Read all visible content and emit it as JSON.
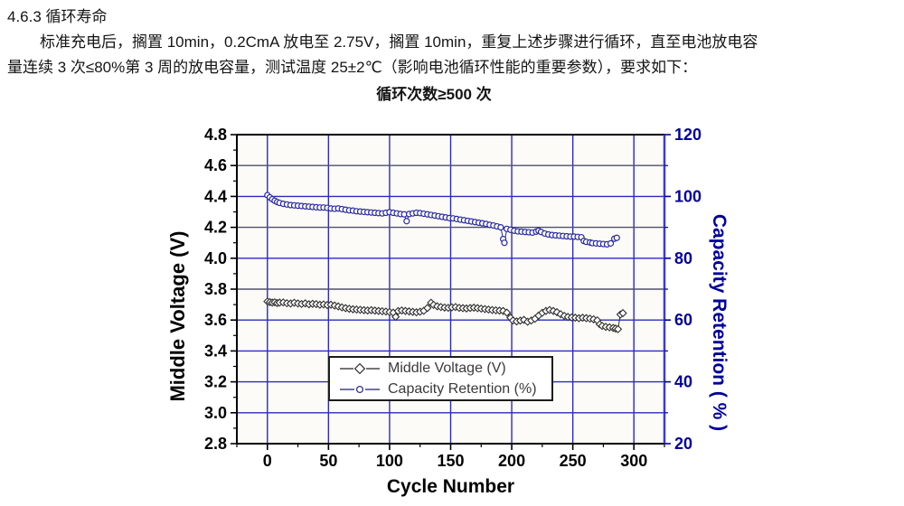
{
  "document": {
    "heading": "4.6.3 循环寿命",
    "body_line_1": "标准充电后，搁置 10min，0.2CmA 放电至 2.75V，搁置 10min，重复上述步骤进行循环，直至电池放电容",
    "body_line_2": "量连续 3 次≤80%第 3 周的放电容量，测试温度 25±2℃（影响电池循环性能的重要参数），要求如下：",
    "requirement": "循环次数≥500 次"
  },
  "chart_data": {
    "type": "line",
    "title": "",
    "xlabel": "Cycle Number",
    "ylabel_left": "Middle Voltage (V)",
    "ylabel_right": "Capacity Retention ( % )",
    "xlim": [
      -25,
      325
    ],
    "x_ticks": [
      0,
      50,
      100,
      150,
      200,
      250,
      300
    ],
    "x_minor_step": 25,
    "ylim_left": [
      2.8,
      4.8
    ],
    "y_ticks_left": [
      2.8,
      3.0,
      3.2,
      3.4,
      3.6,
      3.8,
      4.0,
      4.2,
      4.4,
      4.6,
      4.8
    ],
    "y_minor_step_left": 0.1,
    "ylim_right": [
      20,
      120
    ],
    "y_ticks_right": [
      20,
      40,
      60,
      80,
      100,
      120
    ],
    "y_minor_step_right": 10,
    "grid": true,
    "grid_color_blue": "#2b2bc0",
    "grid_color_dark": "#50506a",
    "grid_dark_values": [
      4.6,
      4.2,
      3.8
    ],
    "plot_bg": "#fcfbf7",
    "spine_color": "#000000",
    "right_spine_color": "#3c3ccc",
    "right_axis_color": "#00009b",
    "legend_position": "inside-bottom-center",
    "series": [
      {
        "name": "Middle Voltage (V)",
        "axis": "left",
        "marker": "diamond",
        "color": "#2e2e2e",
        "points": [
          [
            0,
            3.72
          ],
          [
            2,
            3.716
          ],
          [
            4,
            3.713
          ],
          [
            6,
            3.715
          ],
          [
            8,
            3.71
          ],
          [
            10,
            3.713
          ],
          [
            13,
            3.714
          ],
          [
            16,
            3.709
          ],
          [
            19,
            3.707
          ],
          [
            22,
            3.712
          ],
          [
            25,
            3.707
          ],
          [
            28,
            3.704
          ],
          [
            31,
            3.708
          ],
          [
            34,
            3.702
          ],
          [
            37,
            3.705
          ],
          [
            40,
            3.703
          ],
          [
            43,
            3.699
          ],
          [
            46,
            3.701
          ],
          [
            49,
            3.697
          ],
          [
            52,
            3.699
          ],
          [
            55,
            3.694
          ],
          [
            58,
            3.688
          ],
          [
            61,
            3.682
          ],
          [
            64,
            3.677
          ],
          [
            67,
            3.673
          ],
          [
            70,
            3.67
          ],
          [
            73,
            3.668
          ],
          [
            76,
            3.666
          ],
          [
            79,
            3.664
          ],
          [
            82,
            3.662
          ],
          [
            85,
            3.664
          ],
          [
            88,
            3.661
          ],
          [
            91,
            3.659
          ],
          [
            94,
            3.657
          ],
          [
            97,
            3.655
          ],
          [
            100,
            3.652
          ],
          [
            103,
            3.648
          ],
          [
            105,
            3.621
          ],
          [
            107,
            3.658
          ],
          [
            110,
            3.662
          ],
          [
            113,
            3.659
          ],
          [
            116,
            3.656
          ],
          [
            119,
            3.653
          ],
          [
            122,
            3.65
          ],
          [
            125,
            3.654
          ],
          [
            128,
            3.66
          ],
          [
            131,
            3.678
          ],
          [
            134,
            3.712
          ],
          [
            136,
            3.698
          ],
          [
            139,
            3.689
          ],
          [
            142,
            3.684
          ],
          [
            145,
            3.681
          ],
          [
            148,
            3.679
          ],
          [
            151,
            3.682
          ],
          [
            154,
            3.684
          ],
          [
            157,
            3.679
          ],
          [
            160,
            3.677
          ],
          [
            163,
            3.675
          ],
          [
            166,
            3.678
          ],
          [
            169,
            3.68
          ],
          [
            172,
            3.677
          ],
          [
            175,
            3.674
          ],
          [
            178,
            3.671
          ],
          [
            181,
            3.668
          ],
          [
            184,
            3.665
          ],
          [
            187,
            3.663
          ],
          [
            190,
            3.661
          ],
          [
            193,
            3.659
          ],
          [
            196,
            3.648
          ],
          [
            199,
            3.615
          ],
          [
            201,
            3.597
          ],
          [
            204,
            3.591
          ],
          [
            207,
            3.596
          ],
          [
            210,
            3.601
          ],
          [
            213,
            3.589
          ],
          [
            216,
            3.597
          ],
          [
            219,
            3.608
          ],
          [
            222,
            3.629
          ],
          [
            225,
            3.647
          ],
          [
            228,
            3.659
          ],
          [
            231,
            3.665
          ],
          [
            234,
            3.659
          ],
          [
            237,
            3.651
          ],
          [
            240,
            3.638
          ],
          [
            243,
            3.627
          ],
          [
            246,
            3.62
          ],
          [
            249,
            3.617
          ],
          [
            252,
            3.615
          ],
          [
            255,
            3.612
          ],
          [
            258,
            3.615
          ],
          [
            261,
            3.612
          ],
          [
            264,
            3.609
          ],
          [
            267,
            3.605
          ],
          [
            270,
            3.598
          ],
          [
            272,
            3.573
          ],
          [
            274,
            3.562
          ],
          [
            277,
            3.556
          ],
          [
            280,
            3.553
          ],
          [
            283,
            3.549
          ],
          [
            285,
            3.545
          ],
          [
            287,
            3.541
          ],
          [
            289,
            3.636
          ],
          [
            291,
            3.645
          ]
        ]
      },
      {
        "name": "Capacity Retention (%)",
        "axis": "right",
        "marker": "circle",
        "color": "#2929a3",
        "points": [
          [
            0,
            100.4
          ],
          [
            2,
            99.7
          ],
          [
            4,
            99.1
          ],
          [
            6,
            98.6
          ],
          [
            8,
            98.2
          ],
          [
            10,
            97.9
          ],
          [
            13,
            97.6
          ],
          [
            16,
            97.4
          ],
          [
            19,
            97.2
          ],
          [
            22,
            97.1
          ],
          [
            25,
            97.0
          ],
          [
            28,
            96.9
          ],
          [
            31,
            96.8
          ],
          [
            34,
            96.7
          ],
          [
            37,
            96.6
          ],
          [
            40,
            96.5
          ],
          [
            43,
            96.4
          ],
          [
            46,
            96.4
          ],
          [
            49,
            96.3
          ],
          [
            52,
            96.1
          ],
          [
            55,
            96.0
          ],
          [
            58,
            96.1
          ],
          [
            61,
            95.9
          ],
          [
            64,
            95.7
          ],
          [
            67,
            95.5
          ],
          [
            70,
            95.4
          ],
          [
            73,
            95.2
          ],
          [
            76,
            95.1
          ],
          [
            79,
            95.0
          ],
          [
            82,
            94.9
          ],
          [
            85,
            94.8
          ],
          [
            88,
            94.7
          ],
          [
            91,
            94.6
          ],
          [
            94,
            94.5
          ],
          [
            97,
            94.7
          ],
          [
            100,
            94.9
          ],
          [
            103,
            94.7
          ],
          [
            106,
            94.5
          ],
          [
            109,
            94.3
          ],
          [
            112,
            94.2
          ],
          [
            114,
            92.0
          ],
          [
            116,
            94.3
          ],
          [
            119,
            94.5
          ],
          [
            122,
            94.7
          ],
          [
            125,
            94.6
          ],
          [
            128,
            94.4
          ],
          [
            131,
            94.2
          ],
          [
            134,
            94.0
          ],
          [
            137,
            93.8
          ],
          [
            140,
            93.6
          ],
          [
            143,
            93.4
          ],
          [
            146,
            93.2
          ],
          [
            149,
            93.0
          ],
          [
            152,
            92.9
          ],
          [
            155,
            92.7
          ],
          [
            158,
            92.5
          ],
          [
            161,
            92.3
          ],
          [
            164,
            92.1
          ],
          [
            167,
            91.9
          ],
          [
            170,
            91.7
          ],
          [
            173,
            91.5
          ],
          [
            176,
            91.3
          ],
          [
            179,
            91.1
          ],
          [
            182,
            90.8
          ],
          [
            185,
            90.6
          ],
          [
            188,
            90.3
          ],
          [
            191,
            90.0
          ],
          [
            193,
            86.2
          ],
          [
            194,
            85.0
          ],
          [
            196,
            89.5
          ],
          [
            199,
            89.2
          ],
          [
            202,
            88.9
          ],
          [
            205,
            88.7
          ],
          [
            208,
            88.6
          ],
          [
            211,
            88.5
          ],
          [
            214,
            88.4
          ],
          [
            217,
            88.3
          ],
          [
            220,
            88.6
          ],
          [
            222,
            88.9
          ],
          [
            224,
            88.5
          ],
          [
            227,
            88.0
          ],
          [
            230,
            87.7
          ],
          [
            233,
            87.5
          ],
          [
            236,
            87.4
          ],
          [
            239,
            87.3
          ],
          [
            242,
            87.2
          ],
          [
            245,
            87.1
          ],
          [
            248,
            87.0
          ],
          [
            251,
            87.0
          ],
          [
            254,
            86.9
          ],
          [
            257,
            86.8
          ],
          [
            259,
            85.6
          ],
          [
            261,
            85.3
          ],
          [
            264,
            85.1
          ],
          [
            266,
            84.9
          ],
          [
            269,
            84.8
          ],
          [
            272,
            84.7
          ],
          [
            275,
            84.6
          ],
          [
            278,
            84.5
          ],
          [
            281,
            84.8
          ],
          [
            284,
            86.3
          ],
          [
            286,
            86.6
          ]
        ]
      }
    ]
  },
  "legend": {
    "item_voltage": "Middle Voltage (V)",
    "item_capacity": "Capacity Retention (%)"
  }
}
